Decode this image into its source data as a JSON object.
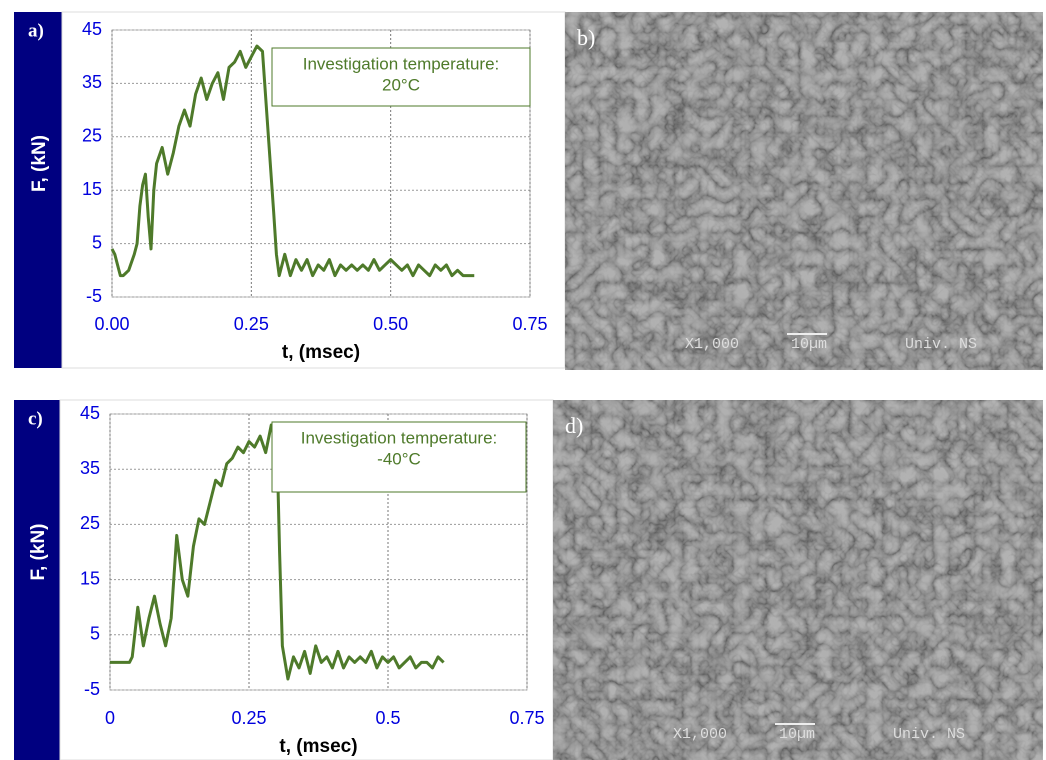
{
  "chart_data": [
    {
      "type": "line",
      "panel_label": "a)",
      "xlabel": "t, (msec)",
      "ylabel": "F, (kN)",
      "annotation": [
        "Investigation temperature:",
        "20°C"
      ],
      "xlim": [
        0,
        0.75
      ],
      "ylim": [
        -5,
        45
      ],
      "xticks": [
        {
          "value": 0,
          "label": "0.00"
        },
        {
          "value": 0.25,
          "label": "0.25"
        },
        {
          "value": 0.5,
          "label": "0.50"
        },
        {
          "value": 0.75,
          "label": "0.75"
        }
      ],
      "yticks": [
        -5,
        5,
        15,
        25,
        35,
        45
      ],
      "grid": true,
      "x": [
        0,
        0.005,
        0.01,
        0.015,
        0.02,
        0.03,
        0.04,
        0.045,
        0.05,
        0.055,
        0.06,
        0.065,
        0.07,
        0.075,
        0.08,
        0.09,
        0.1,
        0.11,
        0.12,
        0.13,
        0.14,
        0.15,
        0.16,
        0.17,
        0.18,
        0.19,
        0.2,
        0.21,
        0.22,
        0.23,
        0.24,
        0.25,
        0.26,
        0.27,
        0.28,
        0.29,
        0.295,
        0.3,
        0.31,
        0.32,
        0.33,
        0.34,
        0.35,
        0.36,
        0.37,
        0.38,
        0.39,
        0.4,
        0.41,
        0.42,
        0.43,
        0.44,
        0.45,
        0.46,
        0.47,
        0.48,
        0.49,
        0.5,
        0.51,
        0.52,
        0.53,
        0.54,
        0.55,
        0.56,
        0.57,
        0.58,
        0.59,
        0.6,
        0.61,
        0.62,
        0.63,
        0.64,
        0.65
      ],
      "series": [
        {
          "color": "#4e7a2a",
          "values": [
            4,
            3,
            1,
            -1,
            -1,
            0,
            3,
            5,
            12,
            16,
            18,
            10,
            4,
            15,
            20,
            23,
            18,
            22,
            27,
            30,
            27,
            33,
            36,
            32,
            35,
            37,
            32,
            38,
            39,
            41,
            38,
            40,
            42,
            41,
            26,
            11,
            3,
            -1,
            3,
            -1,
            2,
            0,
            2,
            -1,
            1,
            0,
            2,
            -1,
            1,
            0,
            1,
            0,
            1,
            0,
            2,
            0,
            1,
            2,
            1,
            0,
            1,
            -1,
            1,
            0,
            -1,
            1,
            0,
            1,
            -1,
            0,
            -1,
            -1,
            -1
          ]
        }
      ]
    },
    {
      "type": "line",
      "panel_label": "c)",
      "xlabel": "t, (msec)",
      "ylabel": "F, (kN)",
      "annotation": [
        "Investigation temperature:",
        "-40°C"
      ],
      "xlim": [
        0,
        0.75
      ],
      "ylim": [
        -5,
        45
      ],
      "xticks": [
        0,
        0.25,
        0.5,
        0.75
      ],
      "yticks": [
        -5,
        5,
        15,
        25,
        35,
        45
      ],
      "grid": true,
      "x": [
        0,
        0.02,
        0.035,
        0.04,
        0.05,
        0.06,
        0.07,
        0.08,
        0.09,
        0.1,
        0.11,
        0.12,
        0.13,
        0.14,
        0.15,
        0.16,
        0.17,
        0.18,
        0.19,
        0.2,
        0.21,
        0.22,
        0.23,
        0.24,
        0.25,
        0.26,
        0.27,
        0.28,
        0.29,
        0.3,
        0.305,
        0.31,
        0.32,
        0.33,
        0.34,
        0.35,
        0.36,
        0.37,
        0.38,
        0.39,
        0.4,
        0.41,
        0.42,
        0.43,
        0.44,
        0.45,
        0.46,
        0.47,
        0.48,
        0.49,
        0.5,
        0.51,
        0.52,
        0.53,
        0.54,
        0.55,
        0.56,
        0.57,
        0.58,
        0.59,
        0.6
      ],
      "series": [
        {
          "color": "#4e7a2a",
          "values": [
            0,
            0,
            0,
            1,
            10,
            3,
            8,
            12,
            7,
            3,
            8,
            23,
            15,
            12,
            21,
            26,
            25,
            29,
            33,
            32,
            36,
            37,
            39,
            38,
            40,
            39,
            41,
            38,
            43,
            41,
            20,
            3,
            -3,
            1,
            -1,
            2,
            -2,
            3,
            0,
            1,
            -1,
            2,
            -1,
            1,
            0,
            1,
            0,
            2,
            -1,
            1,
            0,
            1,
            -1,
            0,
            1,
            -1,
            0,
            0,
            -1,
            1,
            0
          ]
        }
      ]
    }
  ],
  "images": [
    {
      "label": "b)",
      "magnification": "X1,000",
      "scale": "10µm",
      "source": "Univ. NS"
    },
    {
      "label": "d)",
      "magnification": "X1,000",
      "scale": "10µm",
      "source": "Univ. NS"
    }
  ]
}
